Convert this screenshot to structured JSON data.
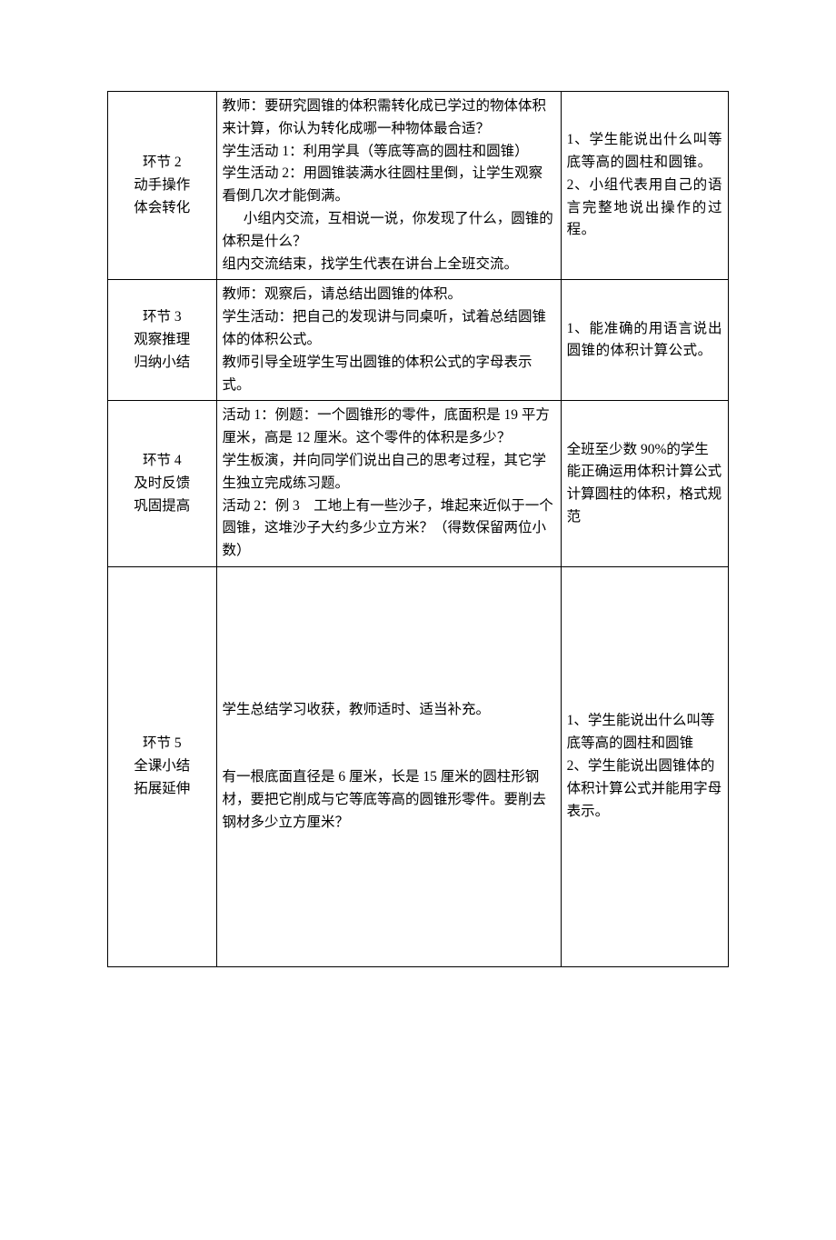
{
  "table": {
    "border_color": "#000000",
    "background_color": "#ffffff",
    "text_color": "#000000",
    "font_family": "SimSun",
    "font_size_pt": 12,
    "line_height": 1.6,
    "column_widths_pct": [
      17.5,
      55.5,
      27.0
    ],
    "rows": [
      {
        "id": "row2",
        "col1": {
          "line1": "环节 2",
          "line2": "动手操作",
          "line3": "体会转化"
        },
        "col2": {
          "p1": "教师：要研究圆锥的体积需转化成已学过的物体体积来计算，你认为转化成哪一种物体最合适？",
          "p2": "学生活动 1：利用学具（等底等高的圆柱和圆锥）",
          "p3": "学生活动 2：用圆锥装满水往圆柱里倒，让学生观察看倒几次才能倒满。",
          "p4": "小组内交流，互相说一说，你发现了什么，圆锥的体积是什么？",
          "p5": "组内交流结束，找学生代表在讲台上全班交流。"
        },
        "col3": {
          "p1": "1、学生能说出什么叫等底等高的圆柱和圆锥。",
          "p2": "2、小组代表用自己的语言完整地说出操作的过程。"
        }
      },
      {
        "id": "row3",
        "col1": {
          "line1": "环节 3",
          "line2": "观察推理",
          "line3": "归纳小结"
        },
        "col2": {
          "p1": "教师：观察后，请总结出圆锥的体积。",
          "p2": "学生活动：把自己的发现讲与同桌听，试着总结圆锥体的体积公式。",
          "p3": "教师引导全班学生写出圆锥的体积公式的字母表示式。"
        },
        "col3": {
          "p1": "1、能准确的用语言说出圆锥的体积计算公式。"
        }
      },
      {
        "id": "row4",
        "col1": {
          "line1": "环节 4",
          "line2": "及时反馈",
          "line3": "巩固提高"
        },
        "col2": {
          "p1": "活动 1：例题：一个圆锥形的零件，底面积是 19 平方厘米，高是 12 厘米。这个零件的体积是多少？",
          "p2": "学生板演，并向同学们说出自己的思考过程，其它学生独立完成练习题。",
          "p3": "活动 2：例 3　工地上有一些沙子，堆起来近似于一个圆锥，这堆沙子大约多少立方米？（得数保留两位小数）"
        },
        "col3": {
          "p1": "全班至少数 90%的学生能正确运用体积计算公式计算圆柱的体积，格式规范"
        }
      },
      {
        "id": "row5",
        "tall": true,
        "col1": {
          "line1": "环节 5",
          "line2": "全课小结",
          "line3": "拓展延伸"
        },
        "col2": {
          "p1": "学生总结学习收获，教师适时、适当补充。",
          "p2": "有一根底面直径是 6 厘米，长是 15 厘米的圆柱形钢材，要把它削成与它等底等高的圆锥形零件。要削去钢材多少立方厘米？"
        },
        "col3": {
          "p1": "1、学生能说出什么叫等底等高的圆柱和圆锥",
          "p2": "2、学生能说出圆锥体的体积计算公式并能用字母表示。"
        }
      }
    ]
  }
}
